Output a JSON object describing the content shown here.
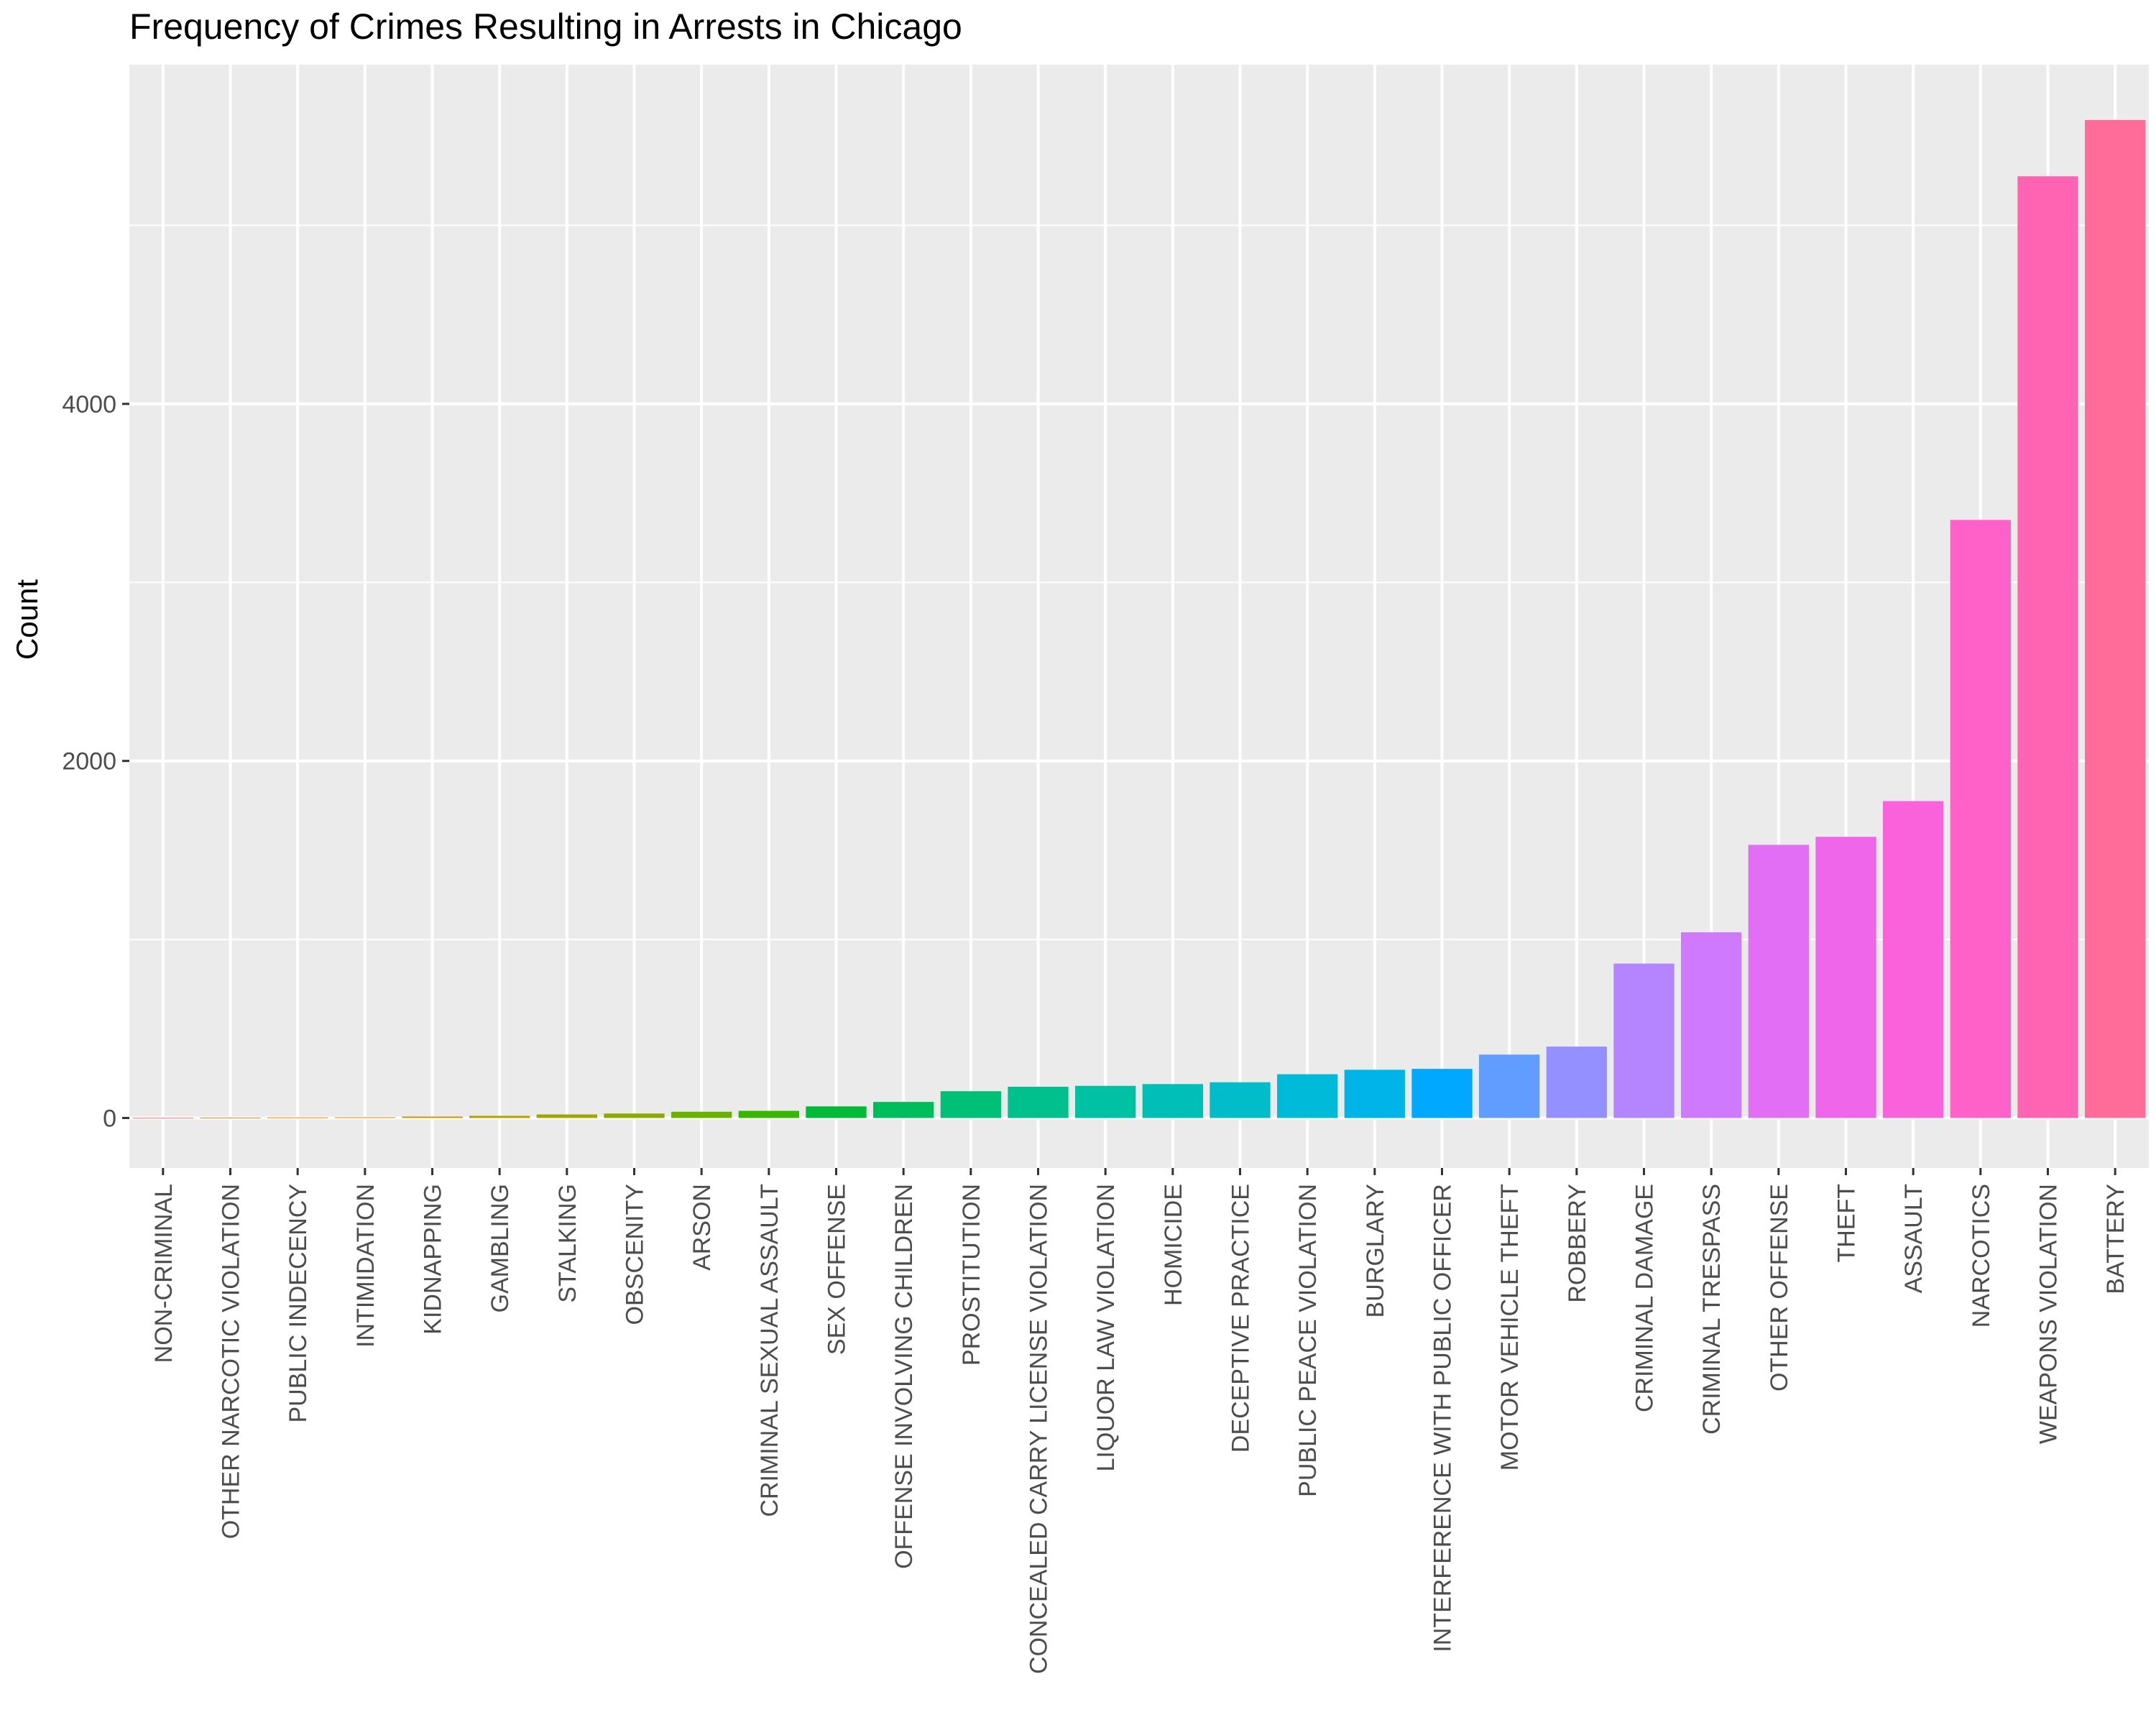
{
  "chart_data": {
    "type": "bar",
    "title": "Frequency of Crimes Resulting in Arrests in Chicago",
    "xlabel": "",
    "ylabel": "Count",
    "ylim": [
      -280,
      5900
    ],
    "yticks": [
      0,
      2000,
      4000
    ],
    "grid": true,
    "legend": "none",
    "categories": [
      "NON-CRIMINAL",
      "OTHER NARCOTIC VIOLATION",
      "PUBLIC INDECENCY",
      "INTIMIDATION",
      "KIDNAPPING",
      "GAMBLING",
      "STALKING",
      "OBSCENITY",
      "ARSON",
      "CRIMINAL SEXUAL ASSAULT",
      "SEX OFFENSE",
      "OFFENSE INVOLVING CHILDREN",
      "PROSTITUTION",
      "CONCEALED CARRY LICENSE VIOLATION",
      "LIQUOR LAW VIOLATION",
      "HOMICIDE",
      "DECEPTIVE PRACTICE",
      "PUBLIC PEACE VIOLATION",
      "BURGLARY",
      "INTERFERENCE WITH PUBLIC OFFICER",
      "MOTOR VEHICLE THEFT",
      "ROBBERY",
      "CRIMINAL DAMAGE",
      "CRIMINAL TRESPASS",
      "OTHER OFFENSE",
      "THEFT",
      "ASSAULT",
      "NARCOTICS",
      "WEAPONS VIOLATION",
      "BATTERY"
    ],
    "values": [
      1,
      2,
      3,
      4,
      8,
      12,
      20,
      25,
      35,
      40,
      65,
      90,
      150,
      175,
      180,
      190,
      200,
      245,
      270,
      275,
      355,
      400,
      865,
      1040,
      1530,
      1575,
      1775,
      3350,
      5275,
      5590
    ],
    "colors": [
      "#F8766D",
      "#F17F21",
      "#E58700",
      "#D89000",
      "#C99800",
      "#B79F00",
      "#A3A500",
      "#8BAB00",
      "#6BB100",
      "#39B600",
      "#00BA38",
      "#00BD5C",
      "#00C077",
      "#00C08D",
      "#00C1A3",
      "#00BFB7",
      "#00BDCA",
      "#00BADA",
      "#00B4EA",
      "#00A9FF",
      "#619CFF",
      "#9590FF",
      "#B584FF",
      "#CE79FF",
      "#E36EF6",
      "#F066EA",
      "#FA62DB",
      "#FF61C9",
      "#FF64B3",
      "#FF6C9A"
    ]
  }
}
